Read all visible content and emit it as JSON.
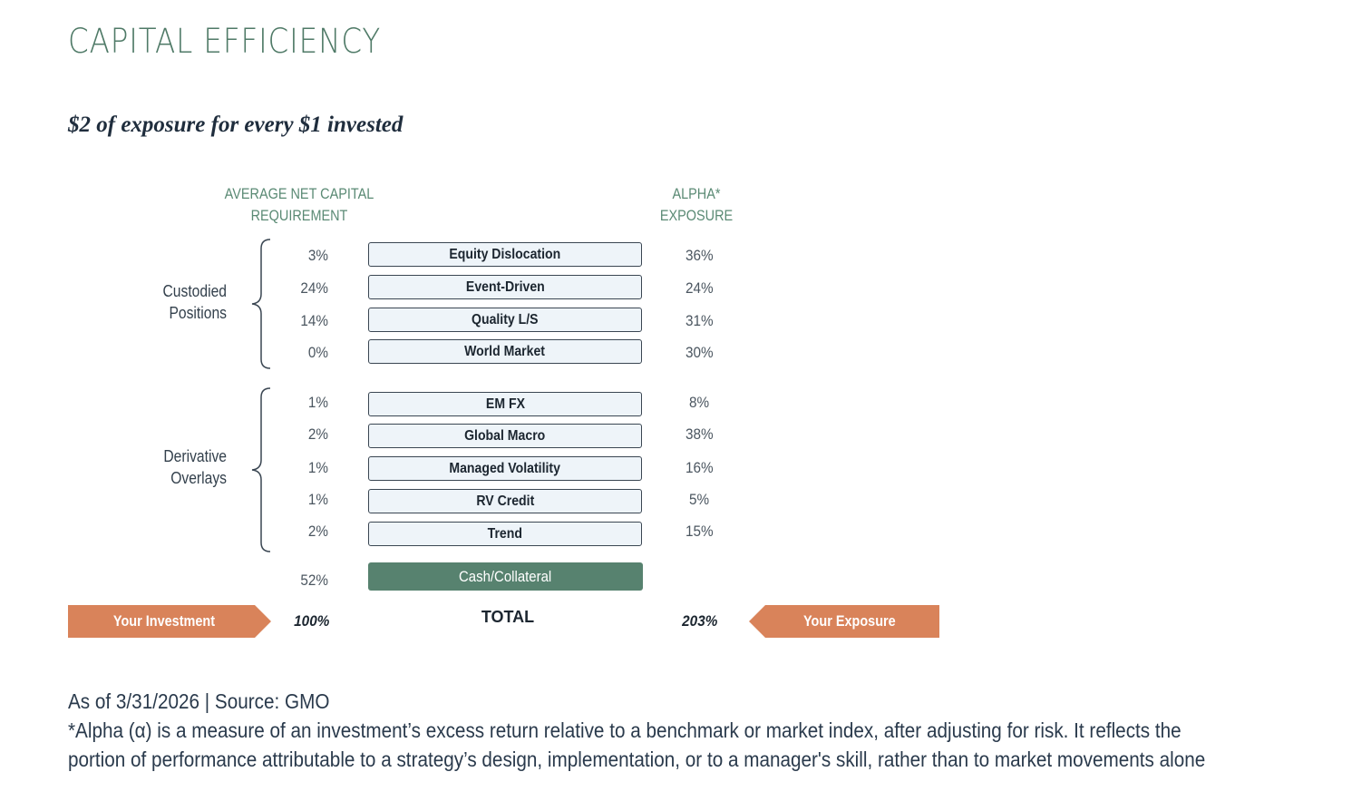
{
  "title": "CAPITAL EFFICIENCY",
  "subtitle": "$2 of exposure for every $1 invested",
  "headers": {
    "left_line1": "AVERAGE NET CAPITAL",
    "left_line2": "REQUIREMENT",
    "right_line1": "ALPHA*",
    "right_line2": "EXPOSURE"
  },
  "groups": {
    "custodied_line1": "Custodied",
    "custodied_line2": "Positions",
    "derivative_line1": "Derivative",
    "derivative_line2": "Overlays"
  },
  "rows": [
    {
      "capital": "3%",
      "label": "Equity Dislocation",
      "alpha": "36%"
    },
    {
      "capital": "24%",
      "label": "Event-Driven",
      "alpha": "24%"
    },
    {
      "capital": "14%",
      "label": "Quality L/S",
      "alpha": "31%"
    },
    {
      "capital": "0%",
      "label": "World Market",
      "alpha": "30%"
    },
    {
      "capital": "1%",
      "label": "EM FX",
      "alpha": "8%"
    },
    {
      "capital": "2%",
      "label": "Global Macro",
      "alpha": "38%"
    },
    {
      "capital": "1%",
      "label": "Managed Volatility",
      "alpha": "16%"
    },
    {
      "capital": "1%",
      "label": "RV Credit",
      "alpha": "5%"
    },
    {
      "capital": "2%",
      "label": "Trend",
      "alpha": "15%"
    }
  ],
  "cash": {
    "capital": "52%",
    "label": "Cash/Collateral"
  },
  "total": {
    "investment_label": "Your Investment",
    "investment_pct": "100%",
    "label": "TOTAL",
    "exposure_pct": "203%",
    "exposure_label": "Your Exposure"
  },
  "colors": {
    "accent_green": "#57826f",
    "arrow_orange": "#d9835a",
    "box_fill": "#eef4f9"
  },
  "footer": {
    "source": "As of 3/31/2026 | Source: GMO",
    "note_line1": "*Alpha (α) is a measure of an investment’s excess return relative to a benchmark or market index, after adjusting for risk. It reflects the",
    "note_line2": "portion of performance attributable to a strategy’s design, implementation, or to a manager's skill, rather than to market movements alone"
  }
}
